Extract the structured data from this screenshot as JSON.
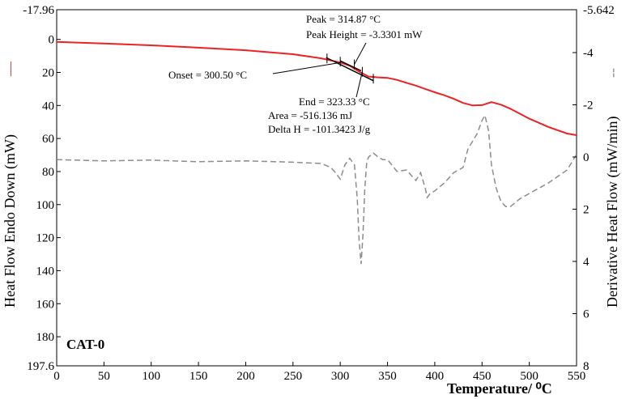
{
  "chart_data": {
    "type": "line",
    "sample_label": "CAT-0",
    "xlabel": "Temperature/ ⁰C",
    "ylabel_left": "Heat Flow Endo Down (mW)",
    "ylabel_right": "Derivative Heat Flow (mW/min)",
    "xlim": [
      0,
      550
    ],
    "ylim_left": [
      -17.96,
      197.6
    ],
    "ylim_right": [
      -5.642,
      8
    ],
    "left_axis_inverted": true,
    "right_axis_inverted": true,
    "x_ticks": [
      "0",
      "50",
      "100",
      "150",
      "200",
      "250",
      "300",
      "350",
      "400",
      "450",
      "500",
      "550"
    ],
    "left_ticks": [
      "-17.96",
      "0",
      "20",
      "40",
      "60",
      "80",
      "100",
      "120",
      "140",
      "160",
      "180",
      "197.6"
    ],
    "right_ticks": [
      "-5.642",
      "-4",
      "-2",
      "0",
      "2",
      "4",
      "6",
      "8"
    ],
    "legend_left_symbol": "—",
    "legend_right_symbol": "--",
    "colors": {
      "heat_flow": "#ee2222",
      "derivative": "#8c8c8c"
    },
    "series": [
      {
        "axis": "left",
        "style": "solid",
        "x": [
          0,
          50,
          100,
          150,
          200,
          250,
          280,
          300,
          310,
          320,
          330,
          340,
          350,
          360,
          370,
          380,
          390,
          400,
          410,
          420,
          430,
          440,
          450,
          460,
          470,
          480,
          500,
          520,
          540,
          550
        ],
        "values": [
          1.5,
          2.5,
          3.6,
          5.0,
          6.6,
          9.0,
          11.5,
          14.0,
          16.0,
          19.5,
          22.5,
          23.0,
          23.3,
          24.5,
          26.3,
          28.0,
          30.0,
          32.0,
          33.8,
          36.0,
          38.5,
          40.0,
          39.8,
          38.0,
          39.5,
          42.0,
          48.0,
          53.0,
          57.0,
          58.0
        ]
      },
      {
        "axis": "right",
        "style": "dashed",
        "x": [
          0,
          50,
          100,
          150,
          200,
          250,
          280,
          290,
          295,
          300,
          305,
          310,
          315,
          318,
          320,
          322,
          324,
          326,
          328,
          330,
          335,
          340,
          345,
          350,
          360,
          370,
          380,
          385,
          390,
          392,
          395,
          400,
          410,
          420,
          430,
          435,
          440,
          445,
          450,
          453,
          457,
          460,
          465,
          470,
          475,
          480,
          490,
          500,
          520,
          540,
          550
        ],
        "values": [
          0.1,
          0.15,
          0.12,
          0.18,
          0.15,
          0.2,
          0.25,
          0.4,
          0.6,
          0.85,
          0.3,
          0.05,
          0.3,
          1.6,
          3.2,
          4.1,
          3.0,
          1.2,
          0.2,
          0.0,
          -0.15,
          0.0,
          0.1,
          0.1,
          0.55,
          0.5,
          0.9,
          0.6,
          1.2,
          1.55,
          1.4,
          1.3,
          1.0,
          0.6,
          0.4,
          -0.3,
          -0.6,
          -0.9,
          -1.4,
          -1.6,
          -1.0,
          0.3,
          1.2,
          1.7,
          1.9,
          1.9,
          1.6,
          1.4,
          1.0,
          0.5,
          -0.1
        ]
      }
    ],
    "annotations": {
      "peak": "Peak = 314.87 °C",
      "peak_height": "Peak Height = -3.3301 mW",
      "onset": "Onset = 300.50 °C",
      "end": "End = 323.33 °C",
      "area": "Area = -516.136 mJ",
      "delta_h": "Delta H = -101.3423 J/g"
    }
  }
}
